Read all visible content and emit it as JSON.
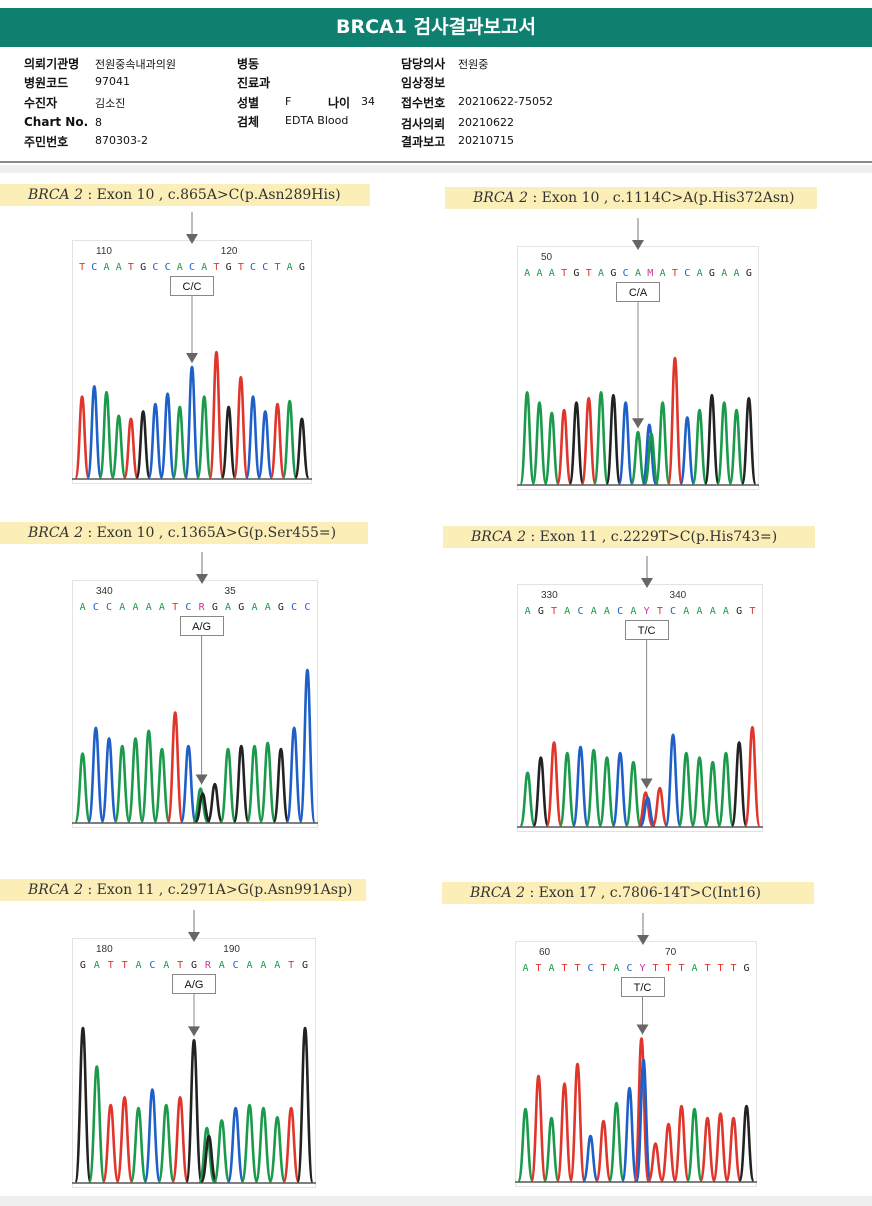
{
  "title": "BRCA1 검사결과보고서",
  "info": {
    "col1": [
      {
        "label": "의뢰기관명",
        "value": "전원중속내과의원"
      },
      {
        "label": "병원코드",
        "value": "97041"
      },
      {
        "label": "수진자",
        "value": "김소진"
      },
      {
        "label": "Chart No.",
        "value": "8"
      },
      {
        "label": "주민번호",
        "value": "870303-2"
      }
    ],
    "col2": [
      {
        "label": "병동",
        "value": ""
      },
      {
        "label": "진료과",
        "value": ""
      },
      {
        "label": "성별",
        "value": "F"
      },
      {
        "label": "검체",
        "value": "EDTA Blood"
      }
    ],
    "age": {
      "label": "나이",
      "value": "34"
    },
    "col3": [
      {
        "label": "담당의사",
        "value": "전원중"
      },
      {
        "label": "임상정보",
        "value": ""
      },
      {
        "label": "접수번호",
        "value": "20210622-75052"
      },
      {
        "label": "검사의뢰",
        "value": "20210622"
      },
      {
        "label": "결과보고",
        "value": "20210715"
      }
    ]
  },
  "panels": [
    {
      "gene": "BRCA 2",
      "variant": ": Exon 10 , c.865A>C(p.Asn289His)",
      "seq": "TCAATGCCACATGTCCTAG",
      "call": "C/C",
      "pos1": "110",
      "pos2": "120"
    },
    {
      "gene": "BRCA 2",
      "variant": ": Exon 10 , c.1114C>A(p.His372Asn)",
      "seq": "AAATGTAGCAMATCAGAAG",
      "call": "C/A",
      "pos1": "50",
      "pos2": ""
    },
    {
      "gene": "BRCA 2",
      "variant": ": Exon 10 , c.1365A>G(p.Ser455=)",
      "seq": "ACCAAAATCRGAGAAGCC",
      "call": "A/G",
      "pos1": "340",
      "pos2": "35"
    },
    {
      "gene": "BRCA 2",
      "variant": ": Exon 11 , c.2229T>C(p.His743=)",
      "seq": "AGTACAACAYTCAAAAGT",
      "call": "T/C",
      "pos1": "330",
      "pos2": "340"
    },
    {
      "gene": "BRCA 2",
      "variant": ": Exon 11 , c.2971A>G(p.Asn991Asp)",
      "seq": "GATTACATGRACAAATG",
      "call": "A/G",
      "pos1": "180",
      "pos2": "190"
    },
    {
      "gene": "BRCA 2",
      "variant": ": Exon 17 , c.7806-14T>C(Int16)",
      "seq": "ATATTCTACYTTTATTTG",
      "call": "T/C",
      "pos1": "60",
      "pos2": "70"
    }
  ],
  "colors": {
    "A": "#1a9a4a",
    "C": "#1f5fc8",
    "G": "#222222",
    "T": "#e0352b",
    "ambiguous": "#d0309a",
    "header": "#0f8070",
    "variant_bg": "#fbeeb6"
  }
}
